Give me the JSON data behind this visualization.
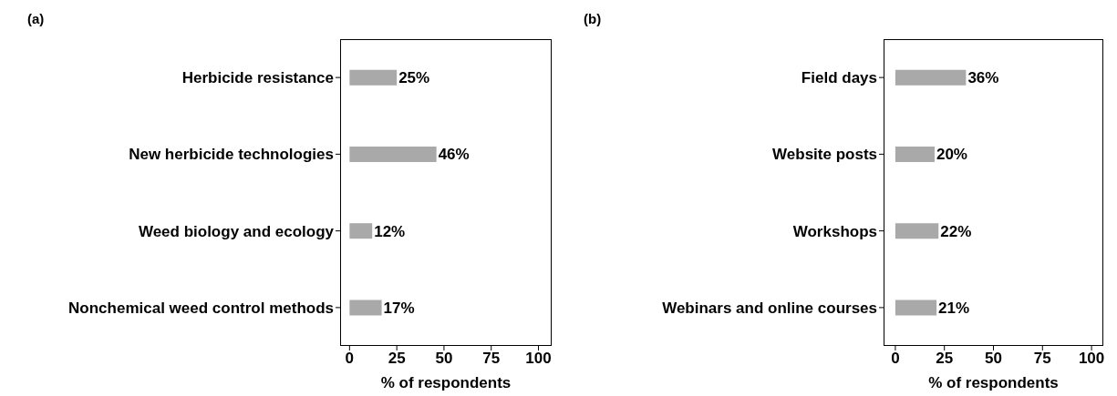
{
  "chart_data": [
    {
      "type": "bar",
      "orientation": "horizontal",
      "title": "(a)",
      "xlabel": "% of respondents",
      "categories": [
        "Herbicide resistance",
        "New herbicide technologies",
        "Weed biology and ecology",
        "Nonchemical weed control methods"
      ],
      "values": [
        25,
        46,
        12,
        17
      ],
      "value_labels": [
        "25%",
        "46%",
        "12%",
        "17%"
      ],
      "color": "#a9a9a9",
      "xlim": [
        -5,
        107
      ],
      "xticks": [
        0,
        25,
        50,
        75,
        100
      ],
      "grid": false
    },
    {
      "type": "bar",
      "orientation": "horizontal",
      "title": "(b)",
      "xlabel": "% of respondents",
      "categories": [
        "Field days",
        "Website posts",
        "Workshops",
        "Webinars and online courses"
      ],
      "values": [
        36,
        20,
        22,
        21
      ],
      "value_labels": [
        "36%",
        "20%",
        "22%",
        "21%"
      ],
      "color": "#a9a9a9",
      "xlim": [
        -6,
        106
      ],
      "xticks": [
        0,
        25,
        50,
        75,
        100
      ],
      "grid": false
    }
  ]
}
